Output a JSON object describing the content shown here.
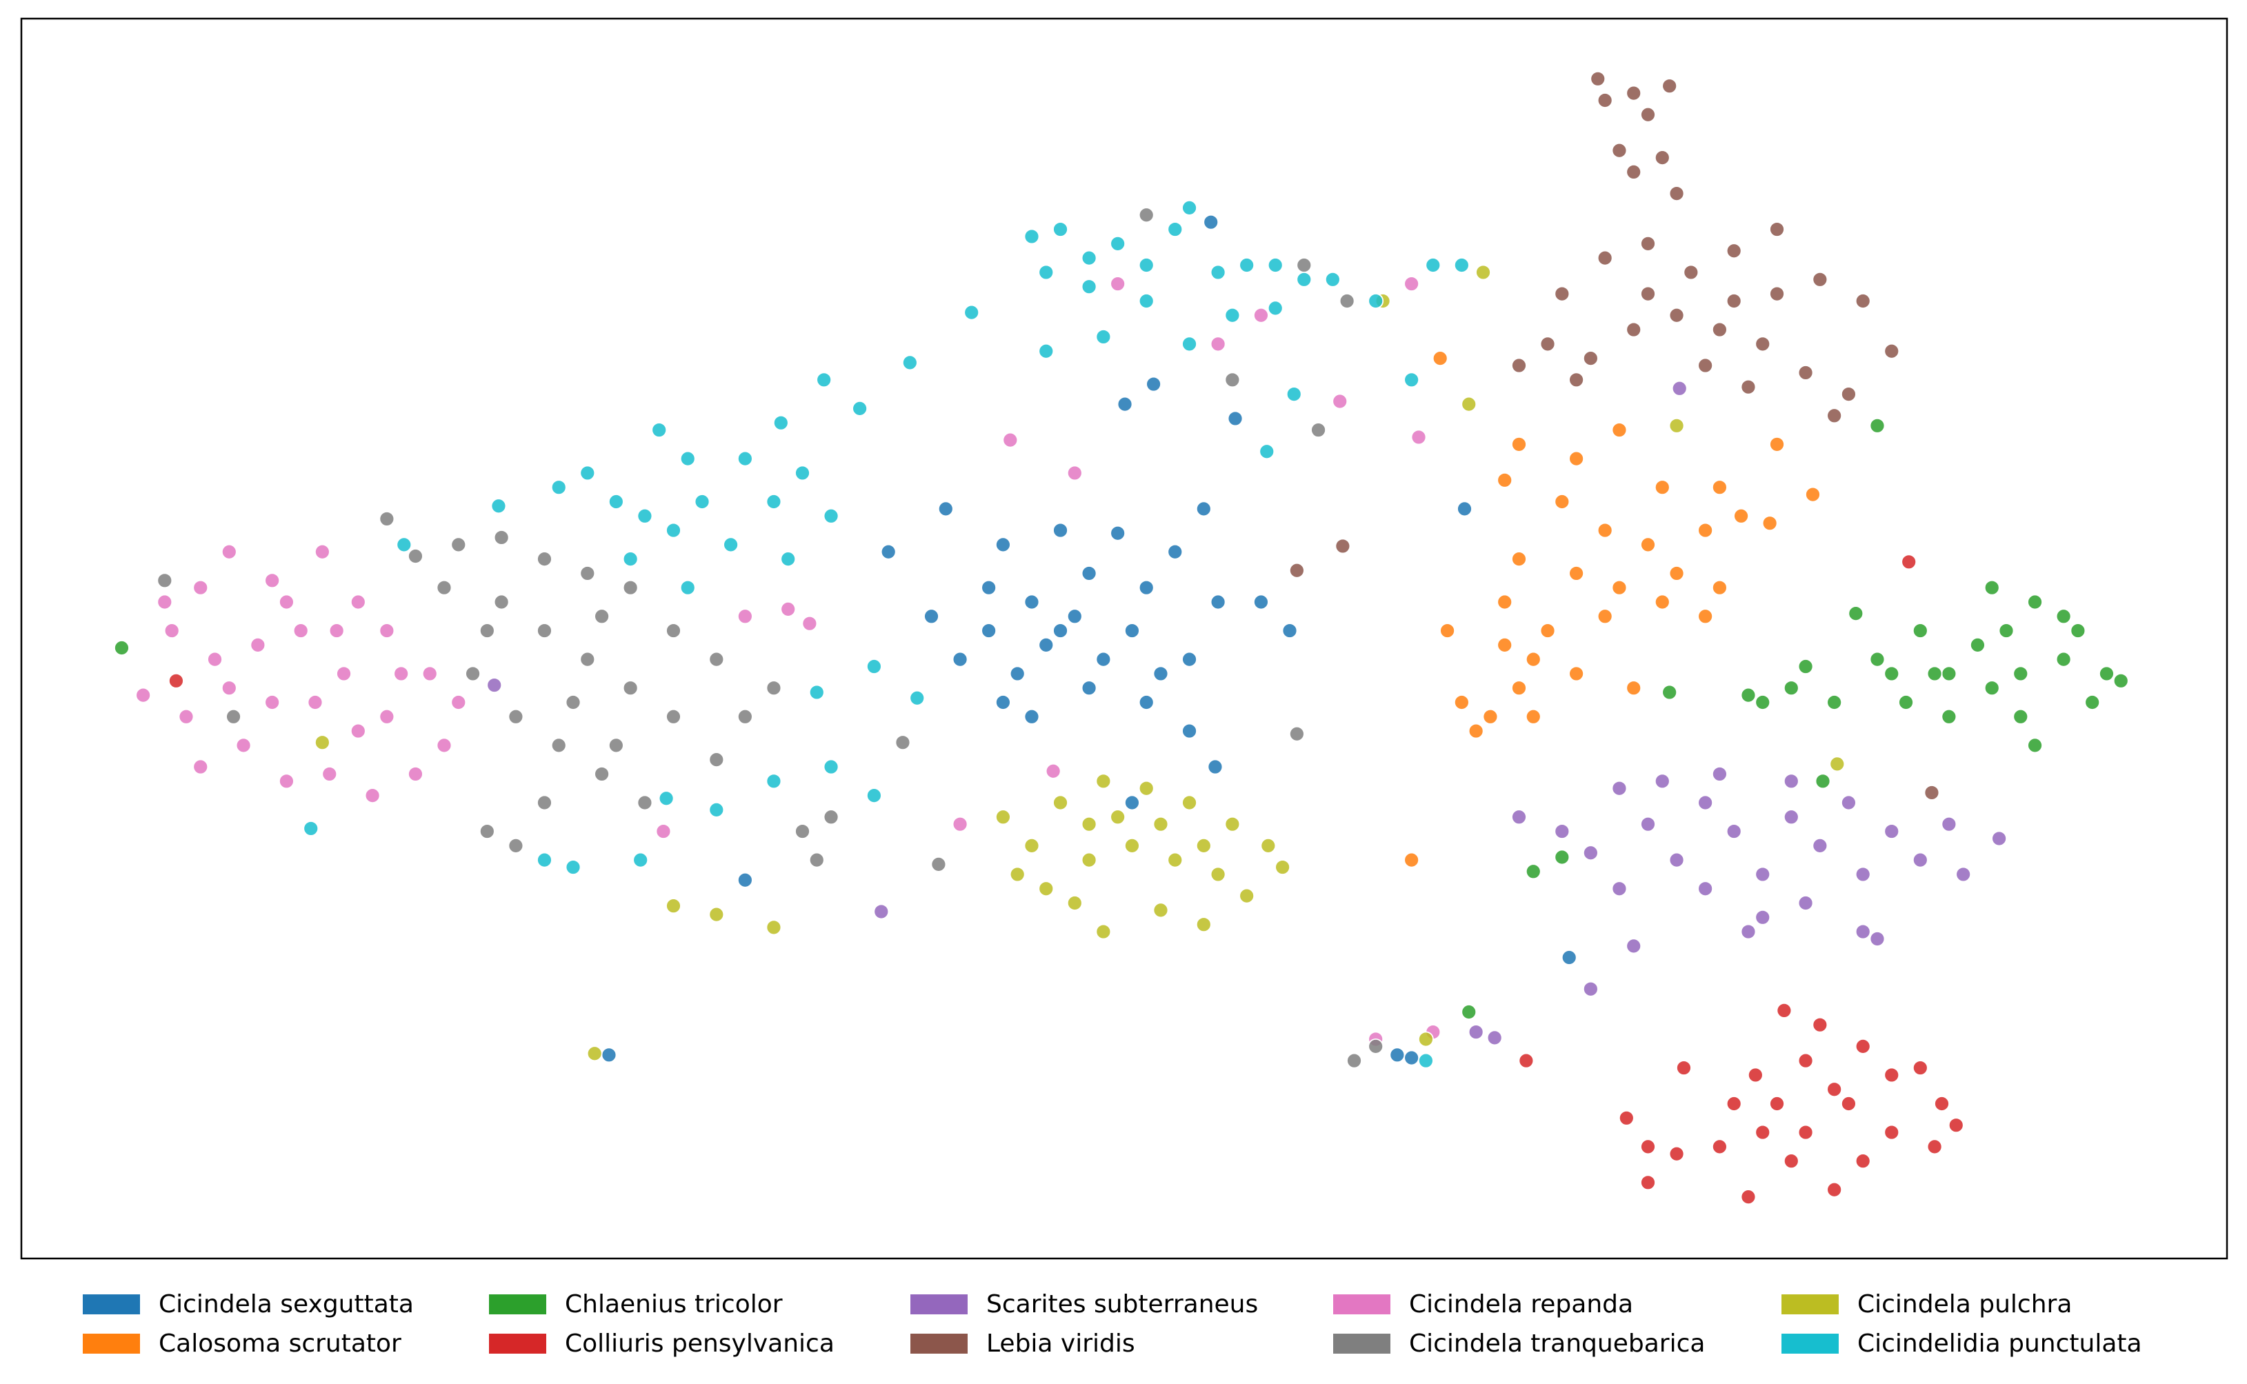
{
  "chart_data": {
    "type": "scatter",
    "xlim": [
      0,
      153.9
    ],
    "ylim": [
      0,
      86.5
    ],
    "grid": false,
    "legend": "bottom",
    "series": [
      {
        "name": "Cicindela sexguttata",
        "color": "#1f77b4",
        "x": [
          64.5,
          68.5,
          72.5,
          76.5,
          80.5,
          82.5,
          83.5,
          86.5,
          88.5,
          63.5,
          65.5,
          67.5,
          69.5,
          71.5,
          73.5,
          75.5,
          77.5,
          79.5,
          68.5,
          70.5,
          74.5,
          78.5,
          81.5,
          67.5,
          74.5,
          78.5,
          72.5,
          70.5,
          79.0,
          77.0,
          84.7,
          83.0,
          81.5,
          83.3,
          50.5,
          108.0,
          96.0,
          97.0,
          100.7,
          60.5,
          77.5,
          41.0
        ],
        "values": [
          52.3,
          49.8,
          50.8,
          50.6,
          49.3,
          52.3,
          45.8,
          45.8,
          43.8,
          44.8,
          41.8,
          43.8,
          40.8,
          42.8,
          44.8,
          41.8,
          43.8,
          40.8,
          38.8,
          37.8,
          39.8,
          38.8,
          41.8,
          46.8,
          47.8,
          46.8,
          43.8,
          45.8,
          61.0,
          59.6,
          58.6,
          72.3,
          36.8,
          34.3,
          26.4,
          21.0,
          14.2,
          14.0,
          52.3,
          49.3,
          31.8,
          14.2
        ]
      },
      {
        "name": "Calosoma scrutator",
        "color": "#ff7f0e",
        "x": [
          104.5,
          108.5,
          111.5,
          114.5,
          118.5,
          122.5,
          125.0,
          103.5,
          107.5,
          110.5,
          113.5,
          117.5,
          120.0,
          104.5,
          108.5,
          111.5,
          115.5,
          118.5,
          103.5,
          106.5,
          110.5,
          114.5,
          117.5,
          99.5,
          105.5,
          108.5,
          112.5,
          100.5,
          102.5,
          104.5,
          101.5,
          105.5,
          99.0,
          97.0,
          122.0,
          103.5
        ],
        "values": [
          56.8,
          55.8,
          57.8,
          53.8,
          53.8,
          56.8,
          53.3,
          54.3,
          52.8,
          50.8,
          49.8,
          50.8,
          51.8,
          48.8,
          47.8,
          46.8,
          47.8,
          46.8,
          45.8,
          43.8,
          44.8,
          45.8,
          44.8,
          43.8,
          41.8,
          40.8,
          39.8,
          38.8,
          37.8,
          39.8,
          36.8,
          37.8,
          62.8,
          27.8,
          51.3,
          42.8
        ]
      },
      {
        "name": "Chlaenius tricolor",
        "color": "#2ca02c",
        "x": [
          129.5,
          132.5,
          134.5,
          137.5,
          140.5,
          143.5,
          145.5,
          146.5,
          131.5,
          134.5,
          137.5,
          139.5,
          140.5,
          142.5,
          144.5,
          130.5,
          136.5,
          138.5,
          133.5,
          139.5,
          142.5,
          121.5,
          123.5,
          120.5,
          124.5,
          126.5,
          7.0,
          129.5,
          128.0,
          115.0,
          107.5,
          105.5,
          101.0,
          125.7
        ],
        "values": [
          41.8,
          43.8,
          40.8,
          46.8,
          45.8,
          43.8,
          40.8,
          40.3,
          38.8,
          37.8,
          39.8,
          37.8,
          35.8,
          41.8,
          38.8,
          40.8,
          42.8,
          43.8,
          40.8,
          40.8,
          44.8,
          38.8,
          39.8,
          39.3,
          41.3,
          38.8,
          42.6,
          58.1,
          45.0,
          39.5,
          28.0,
          27.0,
          17.2,
          33.3
        ]
      },
      {
        "name": "Colliuris pensylvanica",
        "color": "#d62728",
        "x": [
          112.0,
          113.5,
          115.5,
          118.5,
          119.5,
          121.0,
          123.0,
          124.5,
          126.5,
          128.5,
          130.5,
          132.5,
          134.0,
          135.0,
          133.5,
          130.5,
          128.5,
          126.5,
          123.5,
          121.5,
          120.5,
          124.5,
          127.5,
          122.5,
          113.5,
          116.0,
          125.5,
          10.8,
          131.7,
          105.0
        ],
        "values": [
          9.8,
          7.8,
          7.3,
          7.8,
          10.8,
          12.8,
          17.3,
          13.8,
          11.8,
          14.8,
          12.8,
          13.3,
          10.8,
          9.3,
          7.8,
          8.8,
          6.8,
          4.8,
          6.8,
          8.8,
          4.3,
          8.8,
          10.8,
          10.8,
          5.3,
          13.3,
          16.3,
          40.3,
          48.6,
          13.8
        ]
      },
      {
        "name": "Scarites subterraneus",
        "color": "#9467bd",
        "x": [
          104.5,
          107.5,
          109.5,
          111.5,
          113.5,
          115.5,
          117.5,
          119.5,
          121.5,
          123.5,
          125.5,
          127.5,
          128.5,
          130.5,
          132.5,
          134.5,
          135.5,
          138.0,
          111.5,
          117.5,
          121.5,
          124.5,
          128.5,
          129.5,
          118.5,
          123.5,
          120.5,
          112.5,
          109.5,
          114.5,
          115.7,
          60.0,
          102.8,
          101.5,
          33.0
        ],
        "values": [
          30.8,
          29.8,
          28.3,
          32.8,
          30.3,
          27.8,
          31.8,
          29.8,
          26.8,
          30.8,
          28.8,
          31.8,
          26.8,
          29.8,
          27.8,
          30.3,
          26.8,
          29.3,
          25.8,
          25.8,
          23.8,
          24.8,
          22.8,
          22.3,
          33.8,
          33.3,
          22.8,
          21.8,
          18.8,
          33.3,
          60.7,
          24.2,
          15.4,
          15.8,
          40.0
        ]
      },
      {
        "name": "Lebia viridis",
        "color": "#8c564b",
        "x": [
          110.0,
          112.5,
          115.0,
          110.5,
          113.5,
          111.5,
          114.5,
          112.5,
          115.5,
          107.5,
          110.5,
          113.5,
          116.5,
          119.5,
          122.5,
          125.5,
          128.5,
          130.5,
          127.5,
          124.5,
          121.5,
          118.5,
          115.5,
          112.5,
          109.5,
          106.5,
          104.5,
          108.5,
          117.5,
          120.5,
          126.5,
          122.5,
          119.5,
          113.5,
          89.0,
          92.2,
          133.3
        ],
        "values": [
          82.3,
          81.3,
          81.8,
          80.8,
          79.8,
          77.3,
          76.8,
          75.8,
          74.3,
          67.3,
          69.8,
          70.8,
          68.8,
          70.3,
          71.8,
          68.3,
          66.8,
          63.3,
          60.3,
          61.8,
          63.8,
          64.8,
          65.8,
          64.8,
          62.8,
          63.8,
          62.3,
          61.3,
          62.3,
          60.8,
          58.8,
          67.3,
          66.8,
          67.3,
          48.0,
          49.7,
          32.5
        ]
      },
      {
        "name": "Cicindela repanda",
        "color": "#e377c2",
        "x": [
          8.5,
          10.0,
          12.5,
          14.5,
          17.5,
          21.0,
          23.5,
          25.5,
          28.5,
          30.5,
          29.5,
          27.5,
          24.5,
          21.5,
          18.5,
          15.5,
          12.5,
          11.5,
          13.5,
          16.5,
          19.5,
          22.5,
          25.5,
          20.5,
          17.5,
          14.5,
          26.5,
          23.5,
          18.5,
          22.0,
          10.5,
          53.5,
          55.0,
          50.5,
          76.5,
          83.5,
          86.5,
          73.5,
          69.0,
          44.8,
          92.0,
          97.5,
          72.0,
          65.5,
          94.5,
          98.5,
          97.0
        ],
        "values": [
          39.3,
          45.8,
          46.8,
          49.3,
          47.3,
          49.3,
          45.8,
          43.8,
          40.8,
          38.8,
          35.8,
          33.8,
          32.3,
          33.8,
          33.3,
          35.8,
          34.3,
          37.8,
          41.8,
          42.8,
          43.8,
          40.8,
          37.8,
          38.8,
          38.8,
          39.8,
          40.8,
          36.8,
          45.8,
          43.8,
          43.8,
          45.3,
          44.3,
          44.8,
          68.0,
          63.8,
          65.8,
          54.8,
          57.1,
          29.8,
          59.8,
          57.3,
          34.0,
          30.3,
          15.3,
          15.8,
          68.0
        ]
      },
      {
        "name": "Cicindela tranquebarica",
        "color": "#7f7f7f",
        "x": [
          25.5,
          27.5,
          30.5,
          33.5,
          36.5,
          39.5,
          42.5,
          45.5,
          48.5,
          50.5,
          52.5,
          33.5,
          36.5,
          39.5,
          42.5,
          45.5,
          48.5,
          31.5,
          34.5,
          37.5,
          40.5,
          43.5,
          29.5,
          32.5,
          38.5,
          41.5,
          36.5,
          32.5,
          34.5,
          54.5,
          55.5,
          56.5,
          40.5,
          78.5,
          84.5,
          89.5,
          92.5,
          90.5,
          61.5,
          64.0,
          89.0,
          14.8,
          10.0,
          93.0,
          94.5
        ],
        "values": [
          51.6,
          49.0,
          49.8,
          50.3,
          48.8,
          47.8,
          46.8,
          43.8,
          41.8,
          37.8,
          39.8,
          45.8,
          43.8,
          41.8,
          39.8,
          37.8,
          34.8,
          40.8,
          37.8,
          35.8,
          33.8,
          31.8,
          46.8,
          43.8,
          38.8,
          35.8,
          31.8,
          29.8,
          28.8,
          29.8,
          27.8,
          30.8,
          44.8,
          72.8,
          61.3,
          69.3,
          66.8,
          57.8,
          36.0,
          27.5,
          36.6,
          37.8,
          47.3,
          13.8,
          14.8
        ]
      },
      {
        "name": "Cicindela pulchra",
        "color": "#bcbd22",
        "x": [
          68.5,
          70.5,
          69.5,
          72.5,
          75.5,
          78.5,
          81.5,
          84.5,
          87.0,
          88.0,
          85.5,
          82.5,
          79.5,
          75.5,
          73.5,
          71.5,
          74.5,
          77.5,
          80.5,
          83.5,
          76.5,
          79.5,
          82.5,
          74.5,
          45.5,
          48.5,
          52.5,
          21.0,
          101.0,
          115.5,
          102.0,
          95.0,
          126.7,
          98.0,
          40.0
        ],
        "values": [
          30.8,
          28.8,
          26.8,
          31.8,
          33.3,
          32.8,
          31.8,
          30.3,
          28.8,
          27.3,
          25.3,
          23.3,
          24.3,
          22.8,
          24.8,
          25.8,
          27.8,
          28.8,
          27.8,
          26.8,
          30.8,
          30.3,
          28.8,
          30.3,
          24.6,
          24.0,
          23.1,
          36.0,
          59.6,
          58.1,
          68.8,
          66.8,
          34.5,
          15.3,
          14.3
        ]
      },
      {
        "name": "Cicindelidia punctulata",
        "color": "#17becf",
        "x": [
          70.5,
          72.5,
          74.5,
          76.5,
          78.5,
          80.5,
          81.5,
          83.5,
          85.5,
          87.5,
          89.5,
          91.5,
          94.5,
          98.5,
          100.5,
          71.5,
          74.5,
          78.5,
          81.5,
          84.5,
          87.5,
          71.5,
          75.5,
          37.5,
          39.5,
          41.5,
          43.5,
          45.5,
          47.5,
          49.5,
          52.5,
          54.5,
          56.0,
          58.5,
          62.0,
          44.5,
          46.5,
          50.5,
          53.0,
          42.5,
          46.5,
          53.5,
          56.5,
          66.3,
          59.5,
          55.5,
          56.5,
          59.5,
          52.5,
          48.5,
          45.0,
          43.2,
          38.5,
          36.5,
          20.2,
          26.7,
          86.9,
          88.8,
          33.3,
          97.0,
          98.0,
          62.5
        ],
        "values": [
          71.3,
          71.8,
          69.8,
          70.8,
          69.3,
          71.8,
          73.3,
          68.8,
          69.3,
          69.3,
          68.3,
          68.3,
          66.8,
          69.3,
          69.3,
          68.8,
          67.8,
          66.8,
          63.8,
          65.8,
          66.3,
          63.3,
          64.3,
          53.8,
          54.8,
          52.8,
          51.8,
          50.8,
          52.8,
          49.8,
          52.8,
          54.8,
          61.3,
          59.3,
          62.5,
          57.8,
          55.8,
          55.8,
          58.3,
          48.8,
          46.8,
          48.8,
          51.8,
          66.0,
          41.3,
          39.5,
          34.3,
          32.3,
          33.3,
          31.3,
          32.1,
          27.8,
          27.3,
          27.8,
          30.0,
          49.8,
          56.3,
          60.3,
          52.5,
          61.3,
          13.8,
          39.1
        ]
      }
    ]
  }
}
